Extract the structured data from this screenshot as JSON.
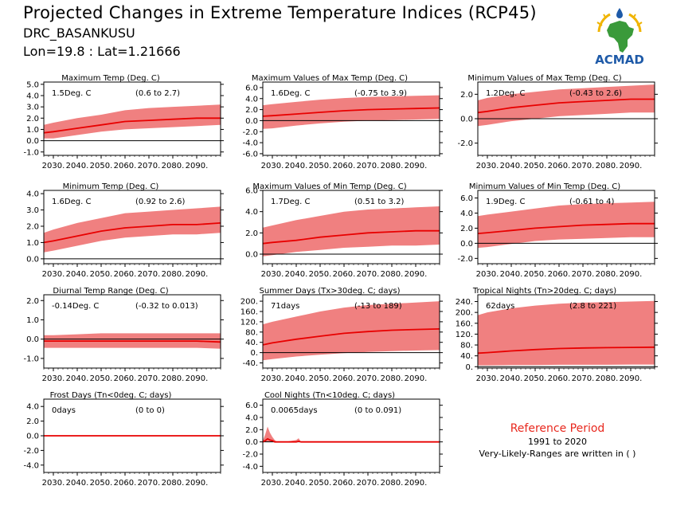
{
  "header": {
    "title": "Projected Changes in Extreme Temperature Indices (RCP45)",
    "station": "DRC_BASANKUSU",
    "coords": "Lon=19.8 : Lat=1.21666",
    "logo_text": "ACMAD"
  },
  "reference": {
    "title": "Reference Period",
    "years": "1991 to 2020",
    "note": "Very-Likely-Ranges are written in ( )"
  },
  "colors": {
    "band": "#f08080",
    "line": "#e80000",
    "ref_title": "#e8281e",
    "logo_blue": "#1e5aa8",
    "logo_green": "#3a9a3a",
    "logo_yellow": "#f0b400"
  },
  "chart_data": [
    {
      "type": "area",
      "title": "Maximum Temp (Deg. C)",
      "change": "1.5Deg. C",
      "range": "(0.6 to 2.7)",
      "x_ticks": [
        "2030.",
        "2040.",
        "2050.",
        "2060.",
        "2070.",
        "2080.",
        "2090."
      ],
      "y_ticks": [
        "5.0",
        "4.0",
        "3.0",
        "2.0",
        "1.0",
        "0.0",
        "-1.0"
      ],
      "ylim": [
        -1.3,
        5.2
      ],
      "x": [
        2026,
        2030,
        2040,
        2050,
        2060,
        2070,
        2080,
        2090,
        2100
      ],
      "series": [
        {
          "values": [
            0.7,
            0.8,
            1.1,
            1.4,
            1.7,
            1.8,
            1.9,
            2.0,
            2.0
          ]
        },
        {
          "values": [
            0.2,
            0.2,
            0.5,
            0.8,
            1.0,
            1.1,
            1.2,
            1.3,
            1.4
          ]
        },
        {
          "values": [
            1.4,
            1.6,
            2.0,
            2.3,
            2.7,
            2.9,
            3.0,
            3.1,
            3.2
          ]
        }
      ]
    },
    {
      "type": "area",
      "title": "Maximum Values of Max Temp (Deg. C)",
      "change": "1.6Deg. C",
      "range": "(-0.75 to 3.9)",
      "x_ticks": [
        "2030.",
        "2040.",
        "2050.",
        "2060.",
        "2070.",
        "2080.",
        "2090."
      ],
      "y_ticks": [
        "6.0",
        "4.0",
        "2.0",
        "0.0",
        "-2.0",
        "-4.0",
        "-6.0"
      ],
      "ylim": [
        -6.3,
        7.0
      ],
      "x": [
        2026,
        2030,
        2040,
        2050,
        2060,
        2070,
        2080,
        2090,
        2100
      ],
      "series": [
        {
          "values": [
            0.8,
            0.9,
            1.2,
            1.5,
            1.8,
            2.0,
            2.1,
            2.2,
            2.3
          ]
        },
        {
          "values": [
            -1.5,
            -1.4,
            -0.9,
            -0.5,
            -0.2,
            0.0,
            0.1,
            0.2,
            0.3
          ]
        },
        {
          "values": [
            2.8,
            3.0,
            3.4,
            3.8,
            4.1,
            4.3,
            4.4,
            4.5,
            4.6
          ]
        }
      ]
    },
    {
      "type": "area",
      "title": "Minimum Values of Max Temp (Deg. C)",
      "change": "1.2Deg. C",
      "range": "(-0.43 to 2.6)",
      "x_ticks": [
        "2030.",
        "2040.",
        "2050.",
        "2060.",
        "2070.",
        "2080.",
        "2090."
      ],
      "y_ticks": [
        "2.0",
        "0.0",
        "-2.0"
      ],
      "ylim": [
        -3.0,
        3.0
      ],
      "x": [
        2026,
        2030,
        2040,
        2050,
        2060,
        2070,
        2080,
        2090,
        2100
      ],
      "series": [
        {
          "values": [
            0.5,
            0.6,
            0.9,
            1.1,
            1.3,
            1.4,
            1.5,
            1.6,
            1.6
          ]
        },
        {
          "values": [
            -0.6,
            -0.5,
            -0.2,
            0.0,
            0.2,
            0.3,
            0.4,
            0.5,
            0.5
          ]
        },
        {
          "values": [
            1.5,
            1.7,
            2.0,
            2.2,
            2.4,
            2.5,
            2.6,
            2.7,
            2.8
          ]
        }
      ]
    },
    {
      "type": "area",
      "title": "Minimum Temp (Deg. C)",
      "change": "1.6Deg. C",
      "range": "(0.92 to 2.6)",
      "x_ticks": [
        "2030.",
        "2040.",
        "2050.",
        "2060.",
        "2070.",
        "2080.",
        "2090."
      ],
      "y_ticks": [
        "4.0",
        "3.0",
        "2.0",
        "1.0",
        "0.0"
      ],
      "ylim": [
        -0.3,
        4.2
      ],
      "x": [
        2026,
        2030,
        2040,
        2050,
        2060,
        2070,
        2080,
        2090,
        2100
      ],
      "series": [
        {
          "values": [
            1.0,
            1.1,
            1.4,
            1.7,
            1.9,
            2.0,
            2.1,
            2.1,
            2.2
          ]
        },
        {
          "values": [
            0.4,
            0.5,
            0.8,
            1.1,
            1.3,
            1.4,
            1.5,
            1.5,
            1.6
          ]
        },
        {
          "values": [
            1.6,
            1.8,
            2.2,
            2.5,
            2.8,
            2.9,
            3.0,
            3.1,
            3.2
          ]
        }
      ]
    },
    {
      "type": "area",
      "title": "Maximum Values of Min Temp (Deg. C)",
      "change": "1.7Deg. C",
      "range": "(0.51 to 3.2)",
      "x_ticks": [
        "2030.",
        "2040.",
        "2050.",
        "2060.",
        "2070.",
        "2080.",
        "2090."
      ],
      "y_ticks": [
        "6.0",
        "4.0",
        "2.0",
        "0.0"
      ],
      "ylim": [
        -0.9,
        6.0
      ],
      "x": [
        2026,
        2030,
        2040,
        2050,
        2060,
        2070,
        2080,
        2090,
        2100
      ],
      "series": [
        {
          "values": [
            1.0,
            1.1,
            1.3,
            1.6,
            1.8,
            2.0,
            2.1,
            2.2,
            2.2
          ]
        },
        {
          "values": [
            -0.2,
            -0.1,
            0.2,
            0.4,
            0.6,
            0.7,
            0.8,
            0.8,
            0.9
          ]
        },
        {
          "values": [
            2.5,
            2.7,
            3.2,
            3.6,
            4.0,
            4.2,
            4.3,
            4.4,
            4.5
          ]
        }
      ]
    },
    {
      "type": "area",
      "title": "Minimum Values of Min Temp (Deg. C)",
      "change": "1.9Deg. C",
      "range": "(-0.61 to 4)",
      "x_ticks": [
        "2030.",
        "2040.",
        "2050.",
        "2060.",
        "2070.",
        "2080.",
        "2090."
      ],
      "y_ticks": [
        "6.0",
        "4.0",
        "2.0",
        "0.0",
        "-2.0"
      ],
      "ylim": [
        -2.7,
        7.0
      ],
      "x": [
        2026,
        2030,
        2040,
        2050,
        2060,
        2070,
        2080,
        2090,
        2100
      ],
      "series": [
        {
          "values": [
            1.3,
            1.4,
            1.7,
            2.0,
            2.2,
            2.4,
            2.5,
            2.6,
            2.6
          ]
        },
        {
          "values": [
            -0.6,
            -0.5,
            -0.1,
            0.3,
            0.5,
            0.6,
            0.7,
            0.8,
            0.8
          ]
        },
        {
          "values": [
            3.6,
            3.8,
            4.2,
            4.6,
            5.0,
            5.2,
            5.3,
            5.4,
            5.5
          ]
        }
      ]
    },
    {
      "type": "area",
      "title": "Diurnal Temp Range (Deg. C)",
      "change": "-0.14Deg. C",
      "range": "(-0.32 to 0.013)",
      "x_ticks": [
        "2030.",
        "2040.",
        "2050.",
        "2060.",
        "2070.",
        "2080.",
        "2090."
      ],
      "y_ticks": [
        "2.0",
        "1.0",
        "0.0",
        "-1.0"
      ],
      "ylim": [
        -1.5,
        2.3
      ],
      "x": [
        2026,
        2030,
        2040,
        2050,
        2060,
        2070,
        2080,
        2090,
        2100
      ],
      "series": [
        {
          "values": [
            -0.1,
            -0.1,
            -0.1,
            -0.1,
            -0.1,
            -0.1,
            -0.1,
            -0.1,
            -0.15
          ]
        },
        {
          "values": [
            -0.45,
            -0.45,
            -0.45,
            -0.45,
            -0.45,
            -0.45,
            -0.45,
            -0.45,
            -0.5
          ]
        },
        {
          "values": [
            0.2,
            0.2,
            0.25,
            0.3,
            0.3,
            0.3,
            0.3,
            0.3,
            0.3
          ]
        }
      ]
    },
    {
      "type": "area",
      "title": "Summer Days (Tx>30deg. C; days)",
      "change": "71days",
      "range": "(-13 to 189)",
      "x_ticks": [
        "2030.",
        "2040.",
        "2050.",
        "2060.",
        "2070.",
        "2080.",
        "2090."
      ],
      "y_ticks": [
        "200.",
        "160.",
        "120.",
        "80.",
        "40.",
        "0.",
        "-40."
      ],
      "ylim": [
        -60,
        225
      ],
      "x": [
        2026,
        2030,
        2040,
        2050,
        2060,
        2070,
        2080,
        2090,
        2100
      ],
      "series": [
        {
          "values": [
            30,
            38,
            52,
            64,
            75,
            82,
            87,
            90,
            92
          ]
        },
        {
          "values": [
            -30,
            -25,
            -15,
            -8,
            -2,
            3,
            6,
            8,
            10
          ]
        },
        {
          "values": [
            110,
            120,
            140,
            160,
            175,
            185,
            190,
            195,
            200
          ]
        }
      ]
    },
    {
      "type": "area",
      "title": "Tropical Nights (Tn>20deg. C; days)",
      "change": "62days",
      "range": "(2.8 to 221)",
      "x_ticks": [
        "2030.",
        "2040.",
        "2050.",
        "2060.",
        "2070.",
        "2080.",
        "2090."
      ],
      "y_ticks": [
        "240.",
        "200.",
        "160.",
        "120.",
        "80.",
        "40.",
        "0."
      ],
      "ylim": [
        -5,
        265
      ],
      "x": [
        2026,
        2030,
        2040,
        2050,
        2060,
        2070,
        2080,
        2090,
        2100
      ],
      "series": [
        {
          "values": [
            50,
            52,
            58,
            63,
            67,
            69,
            70,
            71,
            72
          ]
        },
        {
          "values": [
            5,
            5,
            6,
            6,
            7,
            7,
            7,
            8,
            8
          ]
        },
        {
          "values": [
            190,
            200,
            215,
            225,
            232,
            236,
            238,
            240,
            242
          ]
        }
      ]
    },
    {
      "type": "area",
      "title": "Frost Days (Tn<0deg. C; days)",
      "change": "0days",
      "range": "(0 to 0)",
      "x_ticks": [
        "2030.",
        "2040.",
        "2050.",
        "2060.",
        "2070.",
        "2080.",
        "2090."
      ],
      "y_ticks": [
        "4.0",
        "2.0",
        "0.0",
        "-2.0",
        "-4.0"
      ],
      "ylim": [
        -5.0,
        5.0
      ],
      "x": [
        2026,
        2030,
        2040,
        2050,
        2060,
        2070,
        2080,
        2090,
        2100
      ],
      "series": [
        {
          "values": [
            0,
            0,
            0,
            0,
            0,
            0,
            0,
            0,
            0
          ]
        },
        {
          "values": [
            0,
            0,
            0,
            0,
            0,
            0,
            0,
            0,
            0
          ]
        },
        {
          "values": [
            0,
            0,
            0,
            0,
            0,
            0,
            0,
            0,
            0
          ]
        }
      ]
    },
    {
      "type": "area",
      "title": "Cool Nights (Tn<10deg. C; days)",
      "change": "0.0065days",
      "range": "(0 to 0.091)",
      "x_ticks": [
        "2030.",
        "2040.",
        "2050.",
        "2060.",
        "2070.",
        "2080.",
        "2090."
      ],
      "y_ticks": [
        "6.0",
        "4.0",
        "2.0",
        "0.0",
        "-2.0",
        "-4.0"
      ],
      "ylim": [
        -5.0,
        7.0
      ],
      "x": [
        2026,
        2027,
        2028,
        2029,
        2030,
        2031,
        2032,
        2035,
        2040,
        2041,
        2042,
        2050,
        2100
      ],
      "series": [
        {
          "values": [
            0,
            0.2,
            0.5,
            0.3,
            0.2,
            0,
            0,
            0,
            0,
            0.1,
            0,
            0,
            0
          ]
        },
        {
          "values": [
            0,
            0,
            0,
            0,
            0,
            0,
            0,
            0,
            0,
            0,
            0,
            0,
            0
          ]
        },
        {
          "values": [
            0.2,
            1.2,
            2.5,
            1.5,
            0.8,
            0.3,
            0,
            0,
            0.3,
            0.6,
            0,
            0,
            0
          ]
        }
      ]
    }
  ]
}
